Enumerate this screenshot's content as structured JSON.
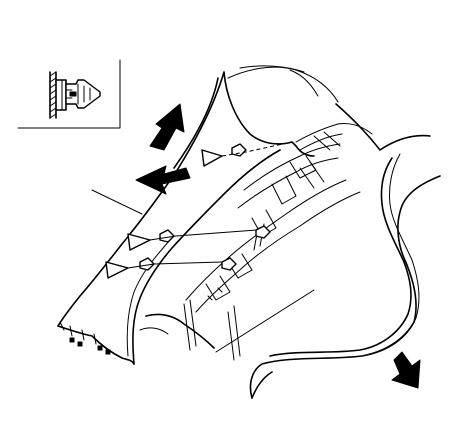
{
  "figure": {
    "labels": []
  }
}
